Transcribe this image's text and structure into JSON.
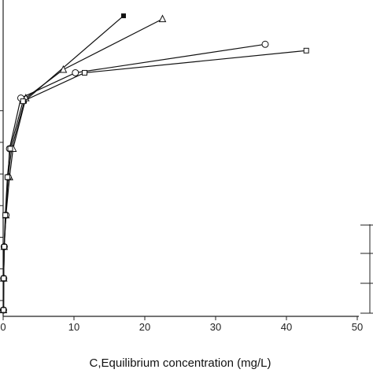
{
  "chart_data": {
    "type": "line",
    "title": "",
    "xlabel": "C,Equilibrium concentration (mg/L)",
    "ylabel": "",
    "xlim": [
      0,
      50
    ],
    "xticks": [
      0,
      10,
      20,
      30,
      40,
      50
    ],
    "xtick_labels": [
      "0",
      "10",
      "20",
      "30",
      "40",
      "50"
    ],
    "grid": false,
    "series": [
      {
        "marker": "filled-square",
        "color": "#111111",
        "points": [
          [
            0.05,
            0.02
          ],
          [
            0.08,
            0.12
          ],
          [
            0.15,
            0.22
          ],
          [
            0.35,
            0.32
          ],
          [
            0.7,
            0.44
          ],
          [
            1.2,
            0.53
          ],
          [
            3.0,
            0.68
          ],
          [
            17.0,
            0.95
          ]
        ]
      },
      {
        "marker": "open-triangle",
        "color": "#111111",
        "points": [
          [
            0.05,
            0.02
          ],
          [
            0.08,
            0.12
          ],
          [
            0.15,
            0.22
          ],
          [
            0.4,
            0.32
          ],
          [
            0.9,
            0.44
          ],
          [
            1.4,
            0.53
          ],
          [
            3.2,
            0.69
          ],
          [
            8.5,
            0.78
          ],
          [
            22.5,
            0.94
          ]
        ]
      },
      {
        "marker": "open-circle",
        "color": "#111111",
        "points": [
          [
            0.05,
            0.02
          ],
          [
            0.08,
            0.12
          ],
          [
            0.15,
            0.22
          ],
          [
            0.4,
            0.32
          ],
          [
            0.7,
            0.44
          ],
          [
            0.9,
            0.53
          ],
          [
            2.5,
            0.69
          ],
          [
            10.2,
            0.77
          ],
          [
            37.0,
            0.86
          ]
        ]
      },
      {
        "marker": "open-square",
        "color": "#111111",
        "points": [
          [
            0.05,
            0.02
          ],
          [
            0.08,
            0.12
          ],
          [
            0.15,
            0.22
          ],
          [
            0.3,
            0.32
          ],
          [
            0.6,
            0.44
          ],
          [
            1.0,
            0.53
          ],
          [
            2.8,
            0.68
          ],
          [
            11.5,
            0.77
          ],
          [
            42.8,
            0.84
          ]
        ]
      }
    ]
  }
}
